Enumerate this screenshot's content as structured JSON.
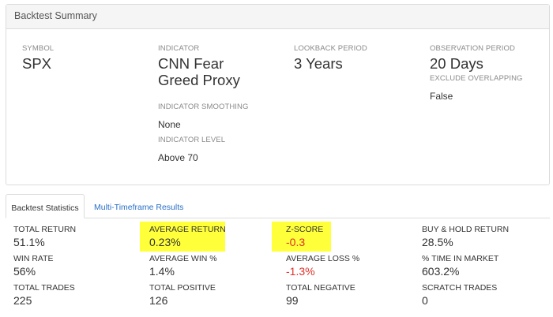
{
  "summary": {
    "title": "Backtest Summary",
    "symbol": {
      "label": "SYMBOL",
      "value": "SPX"
    },
    "indicator": {
      "label": "INDICATOR",
      "value_line1": "CNN Fear",
      "value_line2": "Greed Proxy"
    },
    "lookback": {
      "label": "LOOKBACK PERIOD",
      "value": "3 Years"
    },
    "observation": {
      "label": "OBSERVATION PERIOD",
      "value": "20 Days"
    },
    "exclude_overlapping": {
      "label": "EXCLUDE OVERLAPPING",
      "value": "False"
    },
    "smoothing": {
      "label": "INDICATOR SMOOTHING",
      "value": "None"
    },
    "level": {
      "label": "INDICATOR LEVEL",
      "value": "Above 70"
    }
  },
  "tabs": {
    "active": "Backtest Statistics",
    "other": "Multi-Timeframe Results"
  },
  "stats": {
    "total_return": {
      "label": "TOTAL RETURN",
      "value": "51.1%"
    },
    "average_return": {
      "label": "AVERAGE RETURN",
      "value": "0.23%"
    },
    "z_score": {
      "label": "Z-SCORE",
      "value": "-0.3"
    },
    "buy_hold_return": {
      "label": "BUY & HOLD RETURN",
      "value": "28.5%"
    },
    "win_rate": {
      "label": "WIN RATE",
      "value": "56%"
    },
    "average_win": {
      "label": "AVERAGE WIN %",
      "value": "1.4%"
    },
    "average_loss": {
      "label": "AVERAGE LOSS %",
      "value": "-1.3%"
    },
    "time_in_market": {
      "label": "% TIME IN MARKET",
      "value": "603.2%"
    },
    "total_trades": {
      "label": "TOTAL TRADES",
      "value": "225"
    },
    "total_positive": {
      "label": "TOTAL POSITIVE",
      "value": "126"
    },
    "total_negative": {
      "label": "TOTAL NEGATIVE",
      "value": "99"
    },
    "scratch_trades": {
      "label": "SCRATCH TRADES",
      "value": "0"
    }
  },
  "colors": {
    "highlight": "#ffff3a",
    "negative": "#e0302a",
    "link": "#2a6fc9"
  }
}
